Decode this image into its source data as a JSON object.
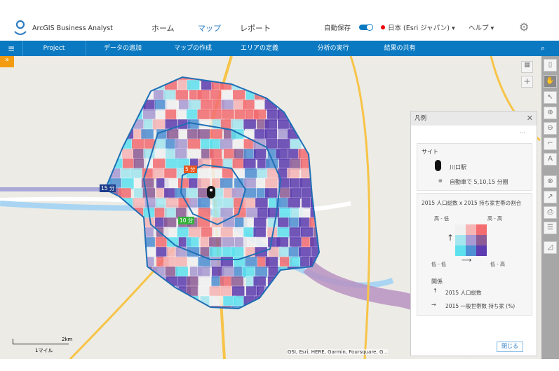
{
  "header": {
    "app_title": "ArcGIS Business Analyst",
    "nav": [
      "ホーム",
      "マップ",
      "レポート"
    ],
    "autosave_label": "自動保存",
    "autosave_on": true,
    "region": "日本 (Esri ジャパン)",
    "help": "ヘルプ"
  },
  "navbar": {
    "project": "Project",
    "items": [
      "データの追加",
      "マップの作成",
      "エリアの定義",
      "分析の実行",
      "結果の共有"
    ]
  },
  "map": {
    "rings": [
      {
        "label": "5 分",
        "color": "#e8561d"
      },
      {
        "label": "10 分",
        "color": "#35b23c"
      },
      {
        "label": "15 分",
        "color": "#1d3e8c"
      }
    ],
    "scale_km": "2km",
    "scale_mile": "1マイル",
    "attribution": "GSI, Esri, HERE, Garmin, Foursquare, G..."
  },
  "legend": {
    "title": "凡例",
    "site_heading": "サイト",
    "site_name": "川口駅",
    "site_desc": "自動車で 5,10,15 分圏",
    "bivariate_title": "2015 人口総数 x 2015 持ち家世帯の割合",
    "corner_tl": "高 - 低",
    "corner_tr": "高 - 高",
    "corner_bl": "低 - 低",
    "corner_br": "低 - 高",
    "grid_colors": [
      [
        "#f1f1f1",
        "#f6b4b4",
        "#f36c70"
      ],
      [
        "#a4e6ef",
        "#a99ad3",
        "#8d5c96"
      ],
      [
        "#5de1ef",
        "#4f8fd3",
        "#5c3cb0"
      ]
    ],
    "relation_heading": "関係",
    "relation_up": "2015 人口総数",
    "relation_right": "2015 一般世帯数 持ち家 (%)",
    "close": "閉じる"
  }
}
